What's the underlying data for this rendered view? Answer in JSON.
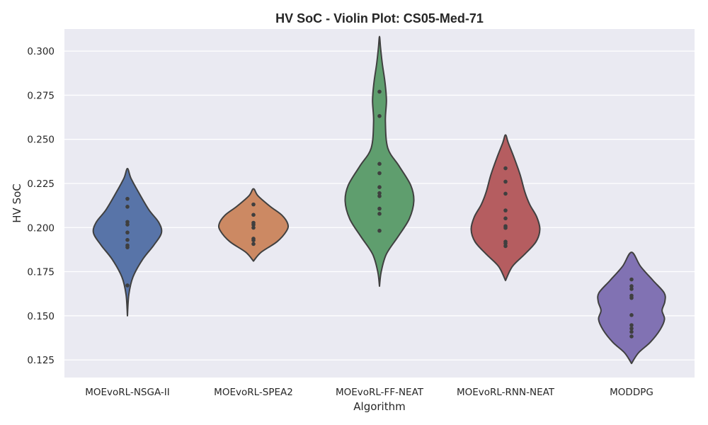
{
  "chart_data": {
    "type": "violin",
    "title": "HV SoC - Violin Plot: CS05-Med-71",
    "xlabel": "Algorithm",
    "ylabel": "HV SoC",
    "ylim": [
      0.115,
      0.3125
    ],
    "yticks": [
      "0.125",
      "0.150",
      "0.175",
      "0.200",
      "0.225",
      "0.250",
      "0.275",
      "0.300"
    ],
    "ytick_values": [
      0.125,
      0.15,
      0.175,
      0.2,
      0.225,
      0.25,
      0.275,
      0.3
    ],
    "grid": true,
    "background": "#eaeaf2",
    "outline_color": "#404040",
    "point_color": "#3f3f3f",
    "categories": [
      "MOEvoRL-NSGA-II",
      "MOEvoRL-SPEA2",
      "MOEvoRL-FF-NEAT",
      "MOEvoRL-RNN-NEAT",
      "MODDPG"
    ],
    "series": [
      {
        "color": "#5874a8",
        "values": [
          0.2163,
          0.2118,
          0.2032,
          0.2017,
          0.1972,
          0.193,
          0.1899,
          0.1888,
          0.1672
        ],
        "profile": [
          [
            0.15,
            0.0
          ],
          [
            0.162,
            0.04
          ],
          [
            0.172,
            0.16
          ],
          [
            0.182,
            0.44
          ],
          [
            0.19,
            0.76
          ],
          [
            0.197,
            0.98
          ],
          [
            0.203,
            0.9
          ],
          [
            0.21,
            0.62
          ],
          [
            0.22,
            0.32
          ],
          [
            0.228,
            0.1
          ],
          [
            0.2334,
            0.0
          ]
        ]
      },
      {
        "color": "#cc8963",
        "values": [
          0.2131,
          0.2072,
          0.2027,
          0.2016,
          0.1999,
          0.1937,
          0.1928,
          0.1907
        ],
        "profile": [
          [
            0.181,
            0.0
          ],
          [
            0.186,
            0.22
          ],
          [
            0.192,
            0.68
          ],
          [
            0.198,
            0.95
          ],
          [
            0.202,
            0.99
          ],
          [
            0.207,
            0.82
          ],
          [
            0.212,
            0.48
          ],
          [
            0.218,
            0.13
          ],
          [
            0.222,
            0.0
          ]
        ]
      },
      {
        "color": "#5f9e6e",
        "values": [
          0.277,
          0.2632,
          0.2361,
          0.2308,
          0.2229,
          0.2195,
          0.2178,
          0.2107,
          0.2078,
          0.1982
        ],
        "profile": [
          [
            0.1668,
            0.0
          ],
          [
            0.175,
            0.05
          ],
          [
            0.185,
            0.2
          ],
          [
            0.195,
            0.54
          ],
          [
            0.205,
            0.86
          ],
          [
            0.215,
            0.99
          ],
          [
            0.224,
            0.9
          ],
          [
            0.235,
            0.56
          ],
          [
            0.245,
            0.24
          ],
          [
            0.26,
            0.17
          ],
          [
            0.272,
            0.2
          ],
          [
            0.282,
            0.16
          ],
          [
            0.293,
            0.08
          ],
          [
            0.302,
            0.03
          ],
          [
            0.3083,
            0.0
          ]
        ]
      },
      {
        "color": "#b55d60",
        "values": [
          0.2336,
          0.226,
          0.2192,
          0.2097,
          0.2052,
          0.2008,
          0.1998,
          0.192,
          0.191,
          0.1895
        ],
        "profile": [
          [
            0.17,
            0.0
          ],
          [
            0.178,
            0.2
          ],
          [
            0.185,
            0.56
          ],
          [
            0.192,
            0.88
          ],
          [
            0.199,
            0.99
          ],
          [
            0.206,
            0.9
          ],
          [
            0.213,
            0.7
          ],
          [
            0.22,
            0.56
          ],
          [
            0.23,
            0.42
          ],
          [
            0.24,
            0.24
          ],
          [
            0.248,
            0.08
          ],
          [
            0.2525,
            0.0
          ]
        ]
      },
      {
        "color": "#8172b3",
        "values": [
          0.1706,
          0.1668,
          0.1652,
          0.1614,
          0.1601,
          0.1504,
          0.1447,
          0.1428,
          0.1409,
          0.1383
        ],
        "profile": [
          [
            0.123,
            0.0
          ],
          [
            0.129,
            0.2
          ],
          [
            0.135,
            0.54
          ],
          [
            0.142,
            0.82
          ],
          [
            0.148,
            0.95
          ],
          [
            0.153,
            0.88
          ],
          [
            0.158,
            0.96
          ],
          [
            0.163,
            0.94
          ],
          [
            0.17,
            0.62
          ],
          [
            0.178,
            0.26
          ],
          [
            0.186,
            0.0
          ]
        ]
      }
    ]
  }
}
